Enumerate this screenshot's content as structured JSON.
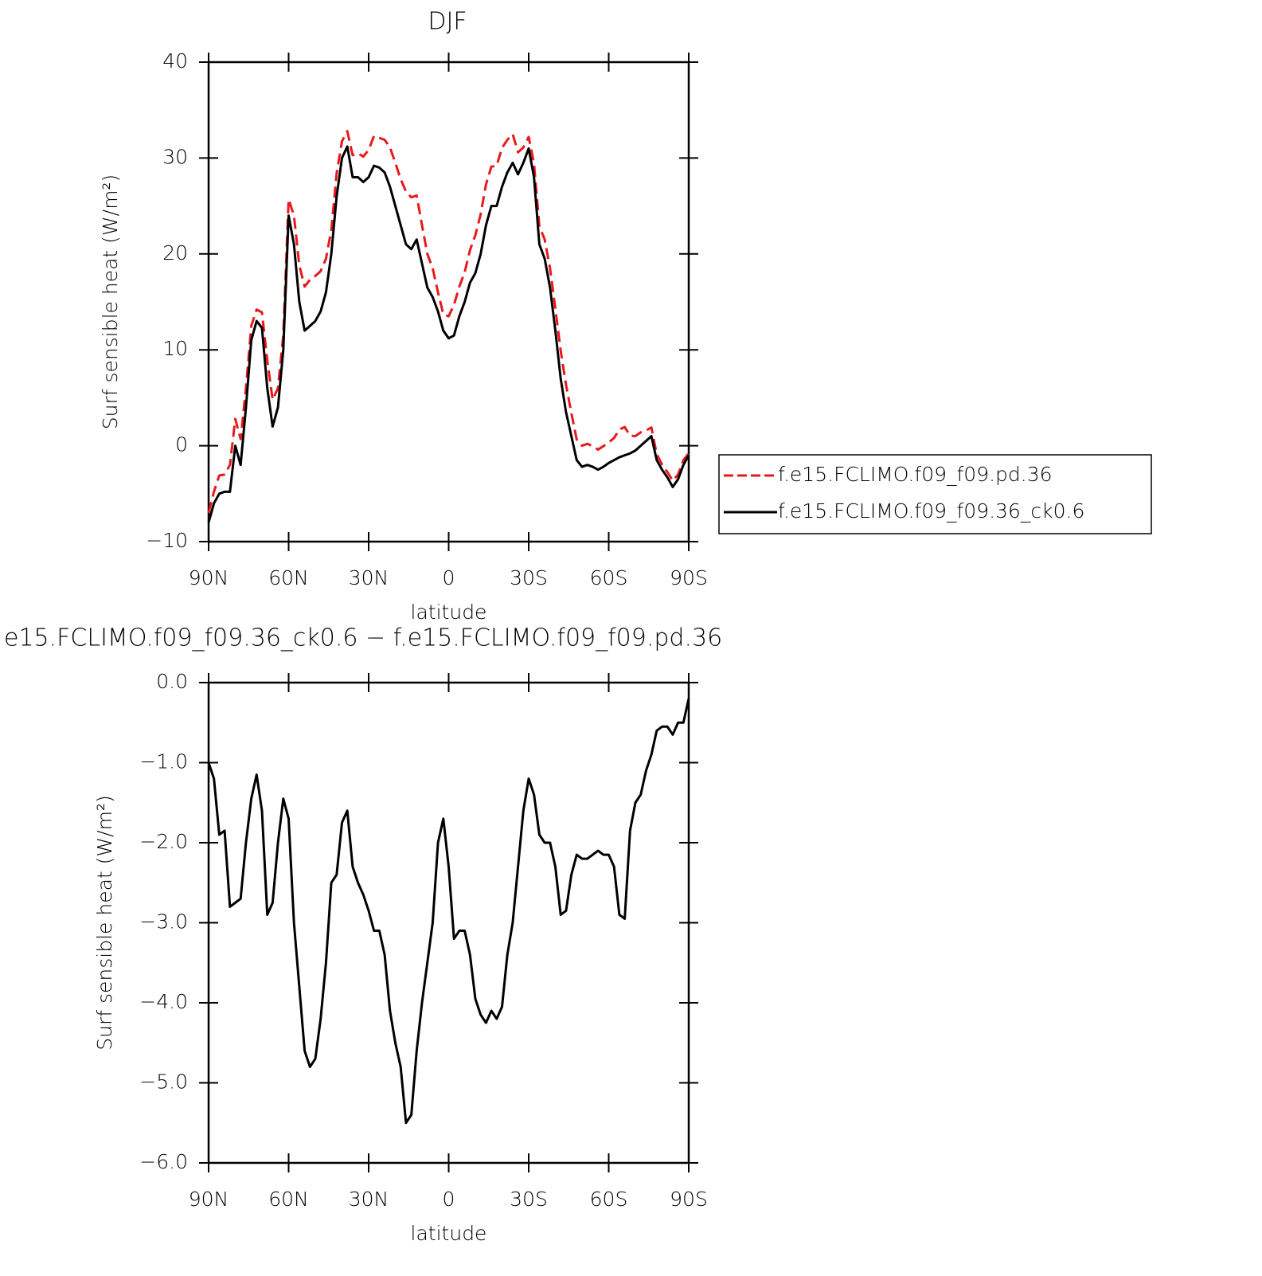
{
  "chart_data": [
    {
      "type": "line",
      "title": "DJF",
      "xlabel": "latitude",
      "ylabel": "Surf sensible heat (W/m²)",
      "xlim": [
        90,
        -90
      ],
      "xticks": [
        {
          "value": 90,
          "label": "90N"
        },
        {
          "value": 60,
          "label": "60N"
        },
        {
          "value": 30,
          "label": "30N"
        },
        0,
        {
          "value": -30,
          "label": "30S"
        },
        {
          "value": -60,
          "label": "60S"
        },
        {
          "value": -90,
          "label": "90S"
        }
      ],
      "ylim": [
        -10,
        40
      ],
      "yticks": [
        {
          "value": -10,
          "label": "−10"
        },
        0,
        10,
        20,
        30,
        40
      ],
      "legend": "outside-right",
      "x": [
        90,
        88,
        86,
        84,
        82,
        80,
        78,
        76,
        74,
        72,
        70,
        68,
        66,
        64,
        62,
        60,
        58,
        56,
        54,
        52,
        50,
        48,
        46,
        44,
        42,
        40,
        38,
        36,
        34,
        32,
        30,
        28,
        26,
        24,
        22,
        20,
        18,
        16,
        14,
        12,
        10,
        8,
        6,
        4,
        2,
        0,
        -2,
        -4,
        -6,
        -8,
        -10,
        -12,
        -14,
        -16,
        -18,
        -20,
        -22,
        -24,
        -26,
        -28,
        -30,
        -32,
        -34,
        -36,
        -38,
        -40,
        -42,
        -44,
        -46,
        -48,
        -50,
        -52,
        -54,
        -56,
        -58,
        -60,
        -62,
        -64,
        -66,
        -68,
        -70,
        -72,
        -74,
        -76,
        -78,
        -80,
        -82,
        -84,
        -86,
        -88,
        -90
      ],
      "series": [
        {
          "name": "f.e15.FCLIMO.f09_f09.pd.36",
          "color": "#e8191c",
          "dash": true,
          "values": [
            -7,
            -4.8,
            -3.1,
            -3,
            -2,
            2.8,
            0.7,
            6,
            12.5,
            14.2,
            13.9,
            8.9,
            4.8,
            6,
            11.5,
            25.7,
            24,
            18.8,
            16.6,
            17.3,
            17.7,
            18.2,
            19.5,
            22.5,
            28.4,
            31.75,
            32.8,
            30.3,
            30.5,
            30.15,
            30.85,
            32.3,
            32.1,
            31.9,
            31.1,
            29.5,
            27.8,
            26.5,
            25.9,
            26.1,
            23,
            20,
            18.5,
            16,
            13.7,
            13.5,
            14.7,
            16.6,
            18.1,
            20.4,
            21.95,
            24.15,
            27.25,
            29.1,
            29.2,
            31.05,
            31.9,
            32.5,
            30.6,
            31.1,
            32.2,
            29.4,
            22.9,
            21.5,
            18.5,
            14.3,
            9.9,
            6.35,
            3.4,
            0.65,
            0,
            0.2,
            -0.05,
            -0.4,
            -0.05,
            0.35,
            0.8,
            1.7,
            1.95,
            1.05,
            1,
            1.4,
            1.6,
            1.9,
            -0.9,
            -1.95,
            -2.75,
            -3.65,
            -3,
            -1.5,
            -0.8
          ]
        },
        {
          "name": "f.e15.FCLIMO.f09_f09.36_ck0.6",
          "color": "#000000",
          "dash": false,
          "values": [
            -8,
            -6,
            -5,
            -4.8,
            -4.8,
            0,
            -2,
            4,
            11,
            13,
            12.3,
            6,
            2,
            4,
            10,
            24,
            21,
            15,
            12,
            12.5,
            13,
            14,
            16,
            20,
            26,
            30,
            31.2,
            28,
            28,
            27.5,
            28,
            29.2,
            29,
            28.5,
            27,
            25,
            23,
            21,
            20.5,
            21.5,
            19,
            16.5,
            15.5,
            14,
            12,
            11.2,
            11.5,
            13.5,
            15,
            17,
            18,
            20,
            23,
            25,
            25,
            27,
            28.5,
            29.5,
            28.3,
            29.5,
            31,
            28,
            21,
            19.5,
            16.5,
            12,
            7,
            3.5,
            1,
            -1.5,
            -2.2,
            -2,
            -2.2,
            -2.5,
            -2.2,
            -1.8,
            -1.5,
            -1.2,
            -1,
            -0.8,
            -0.5,
            0,
            0.5,
            1,
            -1.5,
            -2.5,
            -3.3,
            -4.3,
            -3.5,
            -2,
            -1
          ]
        }
      ]
    },
    {
      "type": "line",
      "title": "e15.FCLIMO.f09_f09.36_ck0.6 − f.e15.FCLIMO.f09_f09.pd.36",
      "xlabel": "latitude",
      "ylabel": "Surf sensible heat (W/m²)",
      "xlim": [
        90,
        -90
      ],
      "xticks": [
        {
          "value": 90,
          "label": "90N"
        },
        {
          "value": 60,
          "label": "60N"
        },
        {
          "value": 30,
          "label": "30N"
        },
        0,
        {
          "value": -30,
          "label": "30S"
        },
        {
          "value": -60,
          "label": "60S"
        },
        {
          "value": -90,
          "label": "90S"
        }
      ],
      "ylim": [
        -6,
        0
      ],
      "yticks": [
        {
          "value": -6,
          "label": "−6.0"
        },
        {
          "value": -5,
          "label": "−5.0"
        },
        {
          "value": -4,
          "label": "−4.0"
        },
        {
          "value": -3,
          "label": "−3.0"
        },
        {
          "value": -2,
          "label": "−2.0"
        },
        {
          "value": -1,
          "label": "−1.0"
        },
        {
          "value": 0,
          "label": "0.0"
        }
      ],
      "x": [
        90,
        88,
        86,
        84,
        82,
        80,
        78,
        76,
        74,
        72,
        70,
        68,
        66,
        64,
        62,
        60,
        58,
        56,
        54,
        52,
        50,
        48,
        46,
        44,
        42,
        40,
        38,
        36,
        34,
        32,
        30,
        28,
        26,
        24,
        22,
        20,
        18,
        16,
        14,
        12,
        10,
        8,
        6,
        4,
        2,
        0,
        -2,
        -4,
        -6,
        -8,
        -10,
        -12,
        -14,
        -16,
        -18,
        -20,
        -22,
        -24,
        -26,
        -28,
        -30,
        -32,
        -34,
        -36,
        -38,
        -40,
        -42,
        -44,
        -46,
        -48,
        -50,
        -52,
        -54,
        -56,
        -58,
        -60,
        -62,
        -64,
        -66,
        -68,
        -70,
        -72,
        -74,
        -76,
        -78,
        -80,
        -82,
        -84,
        -86,
        -88,
        -90
      ],
      "series": [
        {
          "color": "#000000",
          "dash": false,
          "values": [
            -1,
            -1.2,
            -1.9,
            -1.85,
            -2.8,
            -2.75,
            -2.7,
            -2,
            -1.45,
            -1.15,
            -1.6,
            -2.9,
            -2.75,
            -2,
            -1.45,
            -1.7,
            -3,
            -3.8,
            -4.6,
            -4.8,
            -4.7,
            -4.2,
            -3.5,
            -2.5,
            -2.4,
            -1.75,
            -1.6,
            -2.3,
            -2.5,
            -2.65,
            -2.85,
            -3.1,
            -3.1,
            -3.4,
            -4.1,
            -4.5,
            -4.8,
            -5.5,
            -5.4,
            -4.6,
            -4,
            -3.5,
            -3,
            -2,
            -1.7,
            -2.3,
            -3.2,
            -3.1,
            -3.1,
            -3.4,
            -3.95,
            -4.15,
            -4.25,
            -4.1,
            -4.2,
            -4.05,
            -3.4,
            -3,
            -2.3,
            -1.6,
            -1.2,
            -1.4,
            -1.9,
            -2,
            -2,
            -2.3,
            -2.9,
            -2.85,
            -2.4,
            -2.15,
            -2.2,
            -2.2,
            -2.15,
            -2.1,
            -2.15,
            -2.15,
            -2.3,
            -2.9,
            -2.95,
            -1.85,
            -1.5,
            -1.4,
            -1.1,
            -0.9,
            -0.6,
            -0.55,
            -0.55,
            -0.65,
            -0.5,
            -0.5,
            -0.2
          ]
        }
      ]
    }
  ]
}
